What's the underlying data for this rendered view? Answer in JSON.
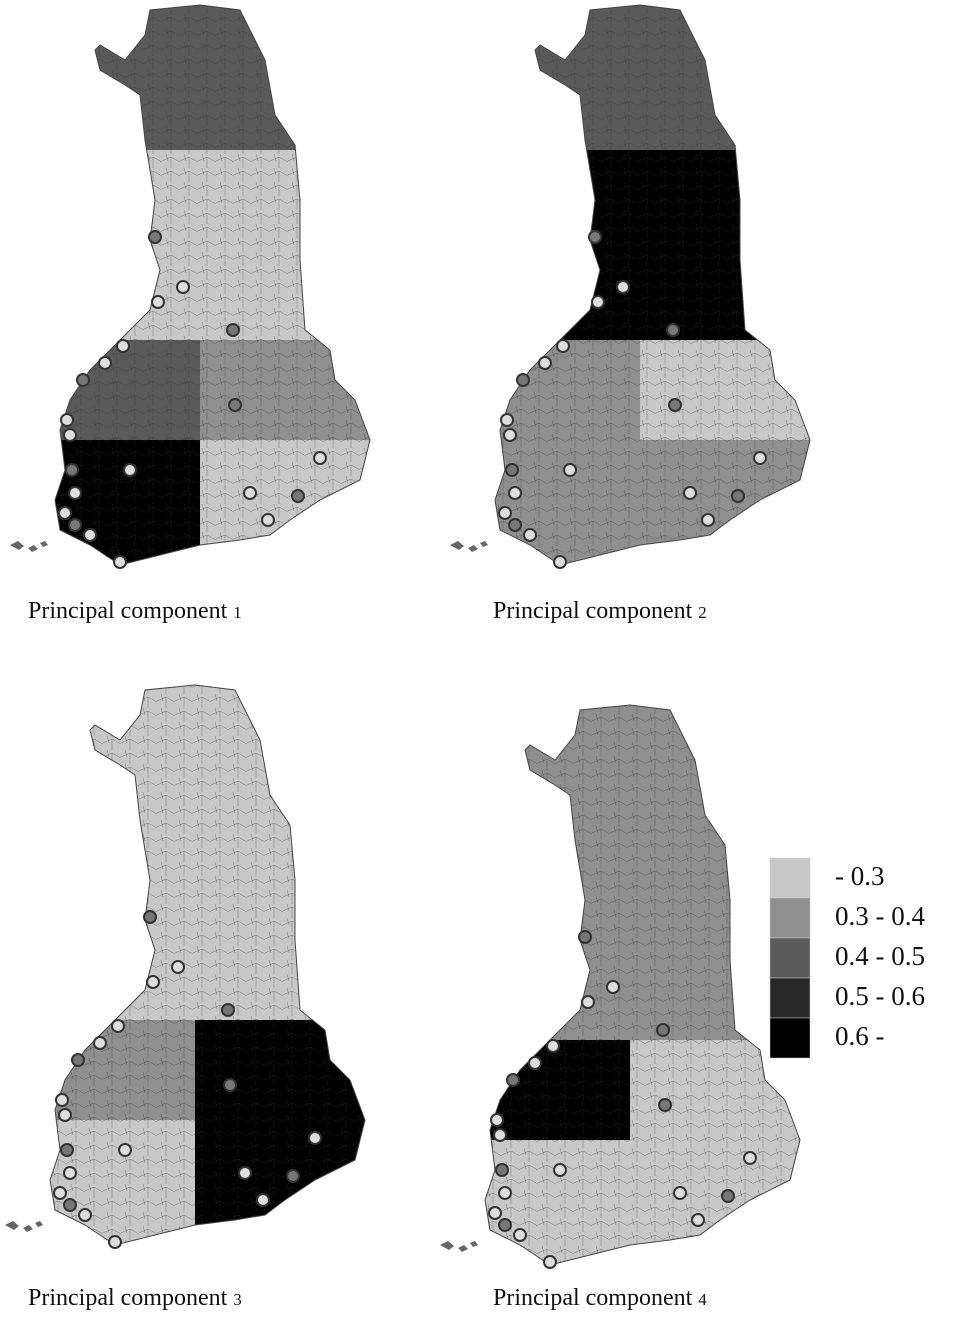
{
  "panels": [
    {
      "caption": "Principal component",
      "number": "1"
    },
    {
      "caption": "Principal component",
      "number": "2"
    },
    {
      "caption": "Principal component",
      "number": "3"
    },
    {
      "caption": "Principal component",
      "number": "4"
    }
  ],
  "legend": {
    "items": [
      {
        "label": "- 0.3",
        "color": "#c8c8c8"
      },
      {
        "label": "0.3 - 0.4",
        "color": "#8f8f8f"
      },
      {
        "label": "0.4 - 0.5",
        "color": "#5a5a5a"
      },
      {
        "label": "0.5 - 0.6",
        "color": "#282828"
      },
      {
        "label": "0.6 -",
        "color": "#000000"
      }
    ]
  }
}
